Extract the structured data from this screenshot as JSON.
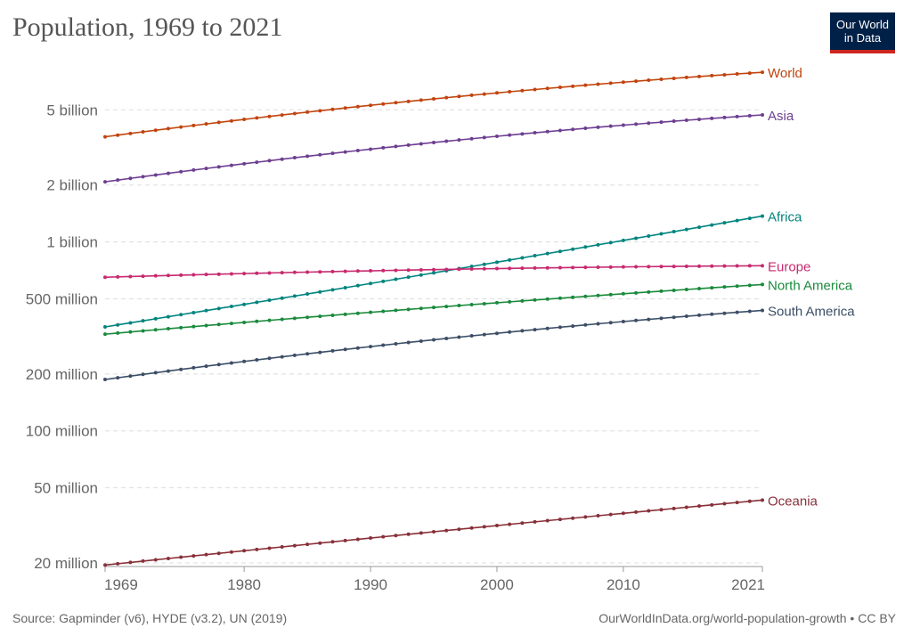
{
  "title": "Population, 1969 to 2021",
  "logo": {
    "line1": "Our World",
    "line2": "in Data"
  },
  "footer": {
    "source": "Source: Gapminder (v6), HYDE (v3.2), UN (2019)",
    "credit": "OurWorldInData.org/world-population-growth • CC BY"
  },
  "chart_data": {
    "type": "line",
    "title": "Population, 1969 to 2021",
    "xlabel": "",
    "ylabel": "",
    "yscale": "log",
    "xlim": [
      1969,
      2021
    ],
    "ylim": [
      20000000,
      8000000000
    ],
    "grid": true,
    "legend": "line-end labels",
    "x_ticks": [
      {
        "value": 1969,
        "label": "1969"
      },
      {
        "value": 1980,
        "label": "1980"
      },
      {
        "value": 1990,
        "label": "1990"
      },
      {
        "value": 2000,
        "label": "2000"
      },
      {
        "value": 2010,
        "label": "2010"
      },
      {
        "value": 2021,
        "label": "2021"
      }
    ],
    "y_ticks": [
      {
        "value": 20000000,
        "label": "20 million"
      },
      {
        "value": 50000000,
        "label": "50 million"
      },
      {
        "value": 100000000,
        "label": "100 million"
      },
      {
        "value": 200000000,
        "label": "200 million"
      },
      {
        "value": 500000000,
        "label": "500 million"
      },
      {
        "value": 1000000000,
        "label": "1 billion"
      },
      {
        "value": 2000000000,
        "label": "2 billion"
      },
      {
        "value": 5000000000,
        "label": "5 billion"
      }
    ],
    "series": [
      {
        "name": "World",
        "color": "#c1440e",
        "start": 3600000000,
        "end": 7900000000,
        "curve": 0.35
      },
      {
        "name": "Asia",
        "color": "#6d3e91",
        "start": 2080000000,
        "end": 4700000000,
        "curve": 0.35
      },
      {
        "name": "Africa",
        "color": "#00847e",
        "start": 355000000,
        "end": 1370000000,
        "curve": -0.05
      },
      {
        "name": "Europe",
        "color": "#c72a6f",
        "start": 650000000,
        "end": 748000000,
        "curve": 0.65
      },
      {
        "name": "North America",
        "color": "#1a8a3c",
        "start": 325000000,
        "end": 595000000,
        "curve": 0.15
      },
      {
        "name": "South America",
        "color": "#3c4e66",
        "start": 187000000,
        "end": 434000000,
        "curve": 0.3
      },
      {
        "name": "Oceania",
        "color": "#883039",
        "start": 19500000,
        "end": 43000000,
        "curve": 0.05
      }
    ]
  }
}
